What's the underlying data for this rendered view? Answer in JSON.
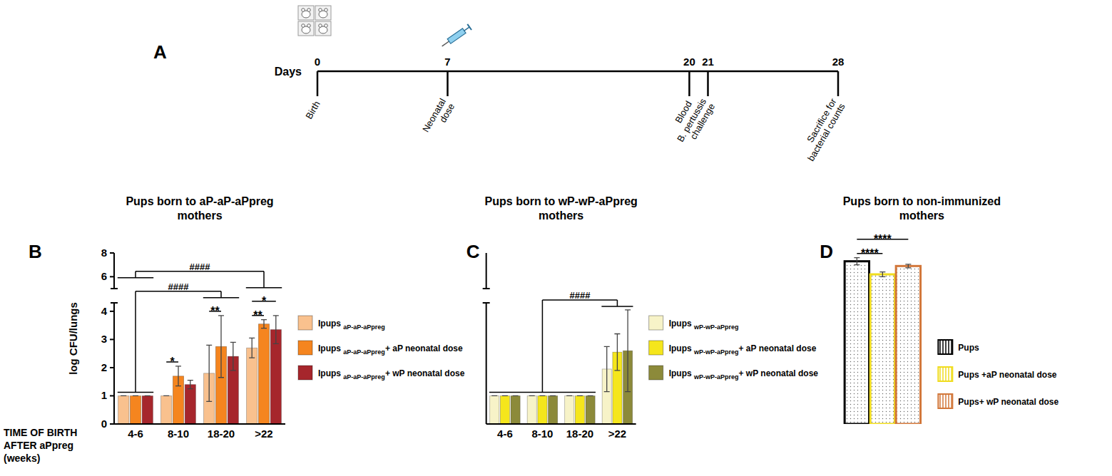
{
  "timeline": {
    "panel": "A",
    "axis_label": "Days",
    "events": [
      {
        "day": 0,
        "label": "Birth"
      },
      {
        "day": 7,
        "label": "Neonatal dose"
      },
      {
        "day": 20,
        "label": "Blood"
      },
      {
        "day": 21,
        "label": "B. pertussis challenge"
      },
      {
        "day": 28,
        "label": "Sacrifice for bacterial counts"
      }
    ]
  },
  "chart_data": [
    {
      "type": "bar",
      "panel": "B",
      "title": "Pups born to aP-aP-aPpreg mothers",
      "x_label": "TIME OF BIRTH AFTER aPpreg (weeks)",
      "y_label": "log CFU/lungs",
      "categories": [
        "4-6",
        "8-10",
        "18-20",
        ">22"
      ],
      "series": [
        {
          "name": "Ipups aP-aP-aPpreg",
          "color": "#f9c18e",
          "values": [
            1,
            1,
            1.8,
            2.7
          ],
          "errors": [
            0,
            0,
            1.0,
            0.35
          ]
        },
        {
          "name": "Ipups aP-aP-aPpreg+ aP neonatal dose",
          "color": "#f5851f",
          "values": [
            1,
            1.7,
            2.75,
            3.55
          ],
          "errors": [
            0,
            0.35,
            1.1,
            0.15
          ]
        },
        {
          "name": "Ipups aP-aP-aPpreg+ wP neonatal dose",
          "color": "#a6262c",
          "values": [
            1,
            1.4,
            2.4,
            3.35
          ],
          "errors": [
            0,
            0.15,
            0.5,
            0.5
          ]
        }
      ],
      "ylim": [
        0,
        8
      ],
      "ybreak": [
        4.3,
        5
      ],
      "yticks": [
        0,
        1,
        2,
        3,
        4,
        6,
        8
      ],
      "tick_labels": true,
      "legend": "right",
      "annotations": [
        {
          "text": "*",
          "category": 1,
          "series": [
            0,
            1
          ]
        },
        {
          "text": "**",
          "category": 2,
          "series": [
            0,
            1
          ]
        },
        {
          "text": "**",
          "category": 3,
          "series": [
            0,
            1
          ]
        },
        {
          "text": "*",
          "category": 3,
          "series": [
            0,
            2
          ]
        },
        {
          "text": "####",
          "categories": [
            [
              0,
              0
            ],
            [
              2,
              2
            ]
          ]
        },
        {
          "text": "####",
          "categories": [
            [
              0,
              0
            ],
            [
              3,
              3
            ]
          ]
        }
      ]
    },
    {
      "type": "bar",
      "panel": "C",
      "title": "Pups born to wP-wP-aPpreg mothers",
      "categories": [
        "4-6",
        "8-10",
        "18-20",
        ">22"
      ],
      "series": [
        {
          "name": "Ipups wP-wP-aPpreg",
          "color": "#f7f3c8",
          "values": [
            1,
            1,
            1,
            1.95
          ],
          "errors": [
            0,
            0,
            0,
            0.8
          ]
        },
        {
          "name": "Ipups wP-wP-aPpreg+ aP neonatal dose",
          "color": "#f5e61c",
          "values": [
            1,
            1,
            1,
            2.55
          ],
          "errors": [
            0,
            0,
            0,
            0.65
          ]
        },
        {
          "name": "Ipups wP-wP-aPpreg+ wP neonatal dose",
          "color": "#8c8a3a",
          "values": [
            1,
            1,
            1,
            2.6
          ],
          "errors": [
            0,
            0,
            0,
            1.45
          ]
        }
      ],
      "ylim": [
        0,
        8
      ],
      "ybreak": [
        4.3,
        5
      ],
      "tick_labels": "x",
      "legend": "right",
      "annotations": [
        {
          "text": "####",
          "categories": [
            [
              0,
              2
            ],
            [
              3,
              3
            ]
          ]
        }
      ]
    },
    {
      "type": "bar",
      "panel": "D",
      "title": "Pups born to non-immunized mothers",
      "categories": [
        null
      ],
      "series": [
        {
          "name": "Pups",
          "color": "#000000",
          "values": [
            7.3
          ],
          "errors": [
            0.3
          ]
        },
        {
          "name": "Pups +aP neonatal dose",
          "color": "#f0dc1e",
          "values": [
            6.2
          ],
          "errors": [
            0.2
          ]
        },
        {
          "name": "Pups+ wP neonatal dose",
          "color": "#d2773a",
          "values": [
            6.9
          ],
          "errors": [
            0.15
          ]
        }
      ],
      "ylim": [
        0,
        8
      ],
      "ybreak": [
        4.3,
        5
      ],
      "tick_labels": false,
      "legend": "right",
      "annotations": [
        {
          "text": "****",
          "category": 0,
          "series": [
            0,
            1
          ]
        },
        {
          "text": "****",
          "category": 0,
          "series": [
            0,
            2
          ]
        }
      ]
    }
  ]
}
